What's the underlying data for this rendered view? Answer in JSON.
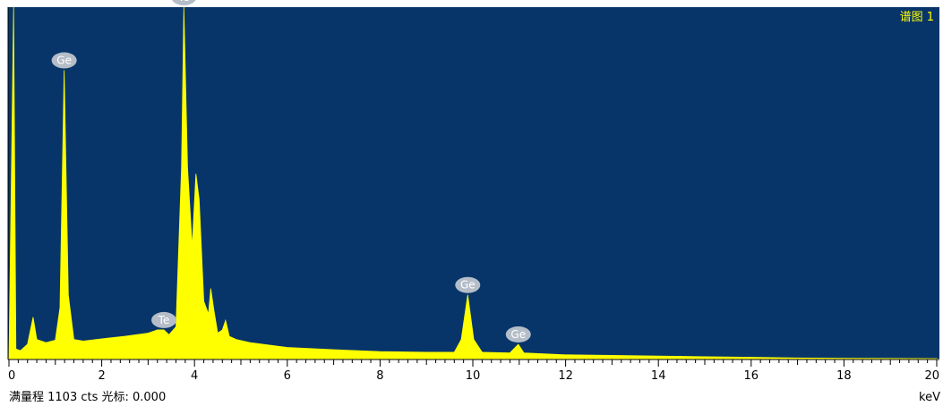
{
  "window": {
    "spectrum_label": "谱图 1"
  },
  "footer": {
    "status_text": "满量程 1103 cts 光标: 0.000",
    "unit_label": "keV"
  },
  "colors": {
    "plot_background": "#07356a",
    "spectrum_fill": "#ffff00",
    "label_color": "#ffff00",
    "peak_label_bubble": "#b4bdc8",
    "page_background": "#ffffff",
    "axis_color": "#000000"
  },
  "chart_data": {
    "type": "area",
    "xlabel": "keV",
    "ylabel": "",
    "xlim": [
      0,
      20
    ],
    "ylim": [
      0,
      1103
    ],
    "full_scale_cts": 1103,
    "cursor": "0.000",
    "x_ticks": [
      0,
      2,
      4,
      6,
      8,
      10,
      12,
      14,
      16,
      18,
      20
    ],
    "x_tick_labels": [
      "0",
      "2",
      "4",
      "6",
      "8",
      "10",
      "12",
      "14",
      "16",
      "18",
      "20"
    ],
    "peaks": [
      {
        "element": "Ge",
        "keV": 1.19,
        "cts": 905
      },
      {
        "element": "Te",
        "keV": 3.34,
        "cts": 90
      },
      {
        "element": "Te",
        "keV": 3.77,
        "cts": 1103
      },
      {
        "element": "Ge",
        "keV": 9.89,
        "cts": 200
      },
      {
        "element": "Ge",
        "keV": 10.98,
        "cts": 45
      }
    ],
    "spectrum": [
      [
        0.0,
        0
      ],
      [
        0.1,
        1103
      ],
      [
        0.15,
        30
      ],
      [
        0.25,
        25
      ],
      [
        0.4,
        45
      ],
      [
        0.52,
        130
      ],
      [
        0.6,
        60
      ],
      [
        0.8,
        50
      ],
      [
        1.0,
        58
      ],
      [
        1.1,
        160
      ],
      [
        1.19,
        905
      ],
      [
        1.28,
        200
      ],
      [
        1.4,
        60
      ],
      [
        1.6,
        55
      ],
      [
        2.0,
        62
      ],
      [
        2.5,
        70
      ],
      [
        3.0,
        80
      ],
      [
        3.2,
        90
      ],
      [
        3.34,
        90
      ],
      [
        3.45,
        75
      ],
      [
        3.6,
        100
      ],
      [
        3.72,
        600
      ],
      [
        3.77,
        1103
      ],
      [
        3.85,
        600
      ],
      [
        3.95,
        350
      ],
      [
        4.03,
        580
      ],
      [
        4.1,
        500
      ],
      [
        4.2,
        180
      ],
      [
        4.3,
        140
      ],
      [
        4.35,
        220
      ],
      [
        4.42,
        150
      ],
      [
        4.5,
        80
      ],
      [
        4.6,
        90
      ],
      [
        4.67,
        120
      ],
      [
        4.75,
        70
      ],
      [
        4.9,
        60
      ],
      [
        5.2,
        50
      ],
      [
        6.0,
        35
      ],
      [
        7.0,
        28
      ],
      [
        8.0,
        22
      ],
      [
        9.0,
        20
      ],
      [
        9.6,
        20
      ],
      [
        9.75,
        60
      ],
      [
        9.89,
        200
      ],
      [
        10.02,
        60
      ],
      [
        10.2,
        20
      ],
      [
        10.8,
        18
      ],
      [
        10.98,
        45
      ],
      [
        11.1,
        18
      ],
      [
        12.0,
        12
      ],
      [
        13.0,
        10
      ],
      [
        14.0,
        8
      ],
      [
        15.0,
        6
      ],
      [
        16.0,
        4
      ],
      [
        17.0,
        2
      ],
      [
        18.0,
        1
      ],
      [
        20.0,
        0
      ]
    ]
  }
}
